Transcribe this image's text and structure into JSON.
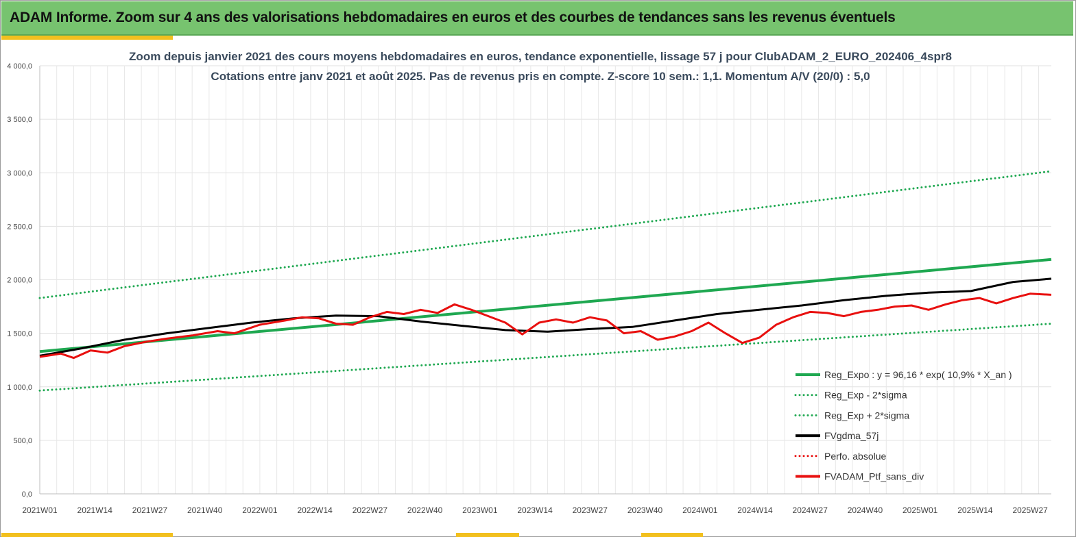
{
  "header": {
    "title": "ADAM Informe. Zoom sur 4 ans des valorisations hebdomadaires en euros et des courbes de tendances sans les revenus éventuels"
  },
  "colors": {
    "header_bg": "#77c36f",
    "accent": "#f2c01e",
    "trend_green": "#1fa851",
    "black": "#000000",
    "red": "#e8100f"
  },
  "chart_data": {
    "type": "line",
    "subtitle_line1": "Zoom depuis janvier 2021 des cours moyens hebdomadaires  en euros, tendance exponentielle, lissage 57 j  pour ClubADAM_2_EURO_202406_4spr8",
    "subtitle_line2": "Cotations  entre janv 2021 et août 2025. Pas de revenus pris en compte. Z-score 10 sem.: 1,1. Momentum A/V (20/0) : 5,0",
    "ylim": [
      0,
      4000
    ],
    "y_ticks": [
      "0,0",
      "500,0",
      "1 000,0",
      "1 500,0",
      "2 000,0",
      "2 500,0",
      "3 000,0",
      "3 500,0",
      "4 000,0"
    ],
    "x_tick_labels": [
      "2021W01",
      "2021W14",
      "2021W27",
      "2021W40",
      "2022W01",
      "2022W14",
      "2022W27",
      "2022W40",
      "2023W01",
      "2023W14",
      "2023W27",
      "2023W40",
      "2024W01",
      "2024W14",
      "2024W27",
      "2024W40",
      "2025W01",
      "2025W14",
      "2025W27"
    ],
    "x_index_range": [
      0,
      239
    ],
    "grid": true,
    "legend_position": "bottom-right",
    "series": [
      {
        "name": "Reg_Expo : y = 96,16 * exp( 10,9% *  X_an )",
        "color": "#1fa851",
        "style": "solid",
        "width": 4,
        "points": [
          [
            0,
            1330
          ],
          [
            239,
            2190
          ]
        ]
      },
      {
        "name": "Reg_Exp - 2*sigma",
        "color": "#1fa851",
        "style": "dotted",
        "width": 3,
        "points": [
          [
            0,
            965
          ],
          [
            239,
            1590
          ]
        ]
      },
      {
        "name": "Reg_Exp + 2*sigma",
        "color": "#1fa851",
        "style": "dotted",
        "width": 3,
        "points": [
          [
            0,
            1830
          ],
          [
            239,
            3015
          ]
        ]
      },
      {
        "name": "FVgdma_57j",
        "color": "#000000",
        "style": "solid",
        "width": 3,
        "points": [
          [
            0,
            1290
          ],
          [
            10,
            1360
          ],
          [
            20,
            1440
          ],
          [
            30,
            1500
          ],
          [
            40,
            1550
          ],
          [
            50,
            1600
          ],
          [
            60,
            1640
          ],
          [
            70,
            1665
          ],
          [
            80,
            1660
          ],
          [
            90,
            1610
          ],
          [
            100,
            1570
          ],
          [
            110,
            1530
          ],
          [
            120,
            1515
          ],
          [
            130,
            1540
          ],
          [
            140,
            1560
          ],
          [
            150,
            1620
          ],
          [
            160,
            1680
          ],
          [
            170,
            1720
          ],
          [
            180,
            1760
          ],
          [
            190,
            1810
          ],
          [
            200,
            1850
          ],
          [
            210,
            1880
          ],
          [
            220,
            1895
          ],
          [
            230,
            1980
          ],
          [
            239,
            2010
          ]
        ]
      },
      {
        "name": "Perfo. absolue",
        "color": "#e8100f",
        "style": "dotted",
        "width": 3,
        "points": []
      },
      {
        "name": "FVADAM_Ptf_sans_div",
        "color": "#e8100f",
        "style": "solid",
        "width": 3,
        "points": [
          [
            0,
            1280
          ],
          [
            5,
            1310
          ],
          [
            8,
            1270
          ],
          [
            12,
            1340
          ],
          [
            16,
            1320
          ],
          [
            20,
            1380
          ],
          [
            25,
            1420
          ],
          [
            30,
            1450
          ],
          [
            36,
            1480
          ],
          [
            42,
            1520
          ],
          [
            46,
            1500
          ],
          [
            52,
            1580
          ],
          [
            58,
            1620
          ],
          [
            62,
            1650
          ],
          [
            66,
            1640
          ],
          [
            70,
            1590
          ],
          [
            74,
            1580
          ],
          [
            78,
            1650
          ],
          [
            82,
            1700
          ],
          [
            86,
            1680
          ],
          [
            90,
            1720
          ],
          [
            94,
            1690
          ],
          [
            98,
            1770
          ],
          [
            102,
            1720
          ],
          [
            106,
            1660
          ],
          [
            110,
            1600
          ],
          [
            114,
            1490
          ],
          [
            118,
            1600
          ],
          [
            122,
            1630
          ],
          [
            126,
            1600
          ],
          [
            130,
            1650
          ],
          [
            134,
            1620
          ],
          [
            138,
            1500
          ],
          [
            142,
            1520
          ],
          [
            146,
            1440
          ],
          [
            150,
            1470
          ],
          [
            154,
            1520
          ],
          [
            158,
            1600
          ],
          [
            162,
            1500
          ],
          [
            166,
            1410
          ],
          [
            170,
            1460
          ],
          [
            174,
            1580
          ],
          [
            178,
            1650
          ],
          [
            182,
            1700
          ],
          [
            186,
            1690
          ],
          [
            190,
            1660
          ],
          [
            194,
            1700
          ],
          [
            198,
            1720
          ],
          [
            202,
            1750
          ],
          [
            206,
            1760
          ],
          [
            210,
            1720
          ],
          [
            214,
            1770
          ],
          [
            218,
            1810
          ],
          [
            222,
            1830
          ],
          [
            226,
            1780
          ],
          [
            230,
            1830
          ],
          [
            234,
            1870
          ],
          [
            239,
            1860
          ]
        ]
      }
    ]
  }
}
